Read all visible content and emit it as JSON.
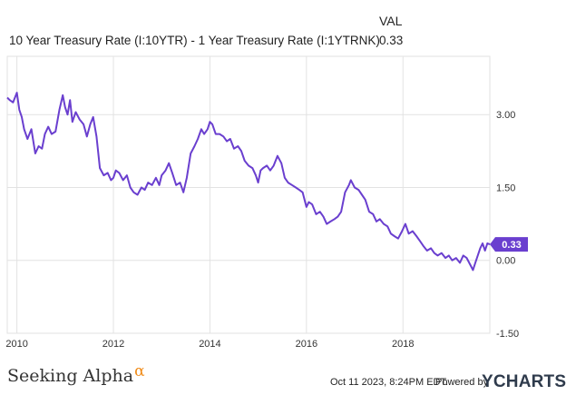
{
  "legend": {
    "header": "VAL",
    "series_name": "10 Year Treasury Rate (I:10YTR) - 1 Year Treasury Rate (I:1YTRNK)",
    "series_value": "0.33"
  },
  "colors": {
    "series": "#6a3fcf",
    "grid": "#e2e2e2",
    "axis_text": "#333333"
  },
  "chart_data": {
    "type": "line",
    "title": "",
    "xlabel": "",
    "ylabel": "",
    "x_ticks": [
      "2010",
      "2012",
      "2014",
      "2016",
      "2018"
    ],
    "y_ticks": [
      3.0,
      1.5,
      0.0,
      -1.5
    ],
    "y_tick_labels": [
      "3.00",
      "1.50",
      "0.00",
      "-1.50"
    ],
    "xlim": [
      2009.8,
      2019.8
    ],
    "ylim": [
      -1.5,
      4.2
    ],
    "grid": true,
    "last_value_label": "0.33",
    "series": [
      {
        "name": "10 Year Treasury Rate (I:10YTR) - 1 Year Treasury Rate (I:1YTRNK)",
        "x": [
          2009.8,
          2009.85,
          2009.92,
          2010.0,
          2010.05,
          2010.1,
          2010.15,
          2010.22,
          2010.3,
          2010.38,
          2010.45,
          2010.52,
          2010.58,
          2010.65,
          2010.72,
          2010.8,
          2010.88,
          2010.95,
          2011.0,
          2011.05,
          2011.1,
          2011.15,
          2011.22,
          2011.3,
          2011.38,
          2011.45,
          2011.52,
          2011.58,
          2011.65,
          2011.72,
          2011.8,
          2011.88,
          2011.95,
          2012.0,
          2012.05,
          2012.12,
          2012.2,
          2012.28,
          2012.35,
          2012.42,
          2012.5,
          2012.58,
          2012.65,
          2012.72,
          2012.8,
          2012.88,
          2012.95,
          2013.0,
          2013.08,
          2013.15,
          2013.22,
          2013.3,
          2013.38,
          2013.45,
          2013.52,
          2013.6,
          2013.68,
          2013.75,
          2013.82,
          2013.88,
          2013.95,
          2014.0,
          2014.05,
          2014.12,
          2014.2,
          2014.28,
          2014.35,
          2014.42,
          2014.5,
          2014.58,
          2014.65,
          2014.72,
          2014.8,
          2014.88,
          2014.95,
          2015.0,
          2015.05,
          2015.1,
          2015.18,
          2015.25,
          2015.32,
          2015.4,
          2015.48,
          2015.55,
          2015.62,
          2015.7,
          2015.78,
          2015.85,
          2015.92,
          2016.0,
          2016.05,
          2016.12,
          2016.2,
          2016.28,
          2016.35,
          2016.42,
          2016.5,
          2016.58,
          2016.65,
          2016.72,
          2016.8,
          2016.88,
          2016.92,
          2017.0,
          2017.08,
          2017.15,
          2017.22,
          2017.3,
          2017.38,
          2017.45,
          2017.52,
          2017.6,
          2017.68,
          2017.75,
          2017.82,
          2017.9,
          2017.98,
          2018.05,
          2018.12,
          2018.2,
          2018.28,
          2018.35,
          2018.42,
          2018.5,
          2018.58,
          2018.65,
          2018.72,
          2018.8,
          2018.88,
          2018.95,
          2019.02,
          2019.1,
          2019.18,
          2019.25,
          2019.32,
          2019.4,
          2019.45,
          2019.5,
          2019.55,
          2019.6,
          2019.65,
          2019.7,
          2019.75,
          2019.8
        ],
        "values": [
          3.35,
          3.3,
          3.25,
          3.45,
          3.1,
          2.95,
          2.7,
          2.5,
          2.7,
          2.2,
          2.35,
          2.3,
          2.6,
          2.75,
          2.6,
          2.65,
          3.1,
          3.4,
          3.15,
          3.0,
          3.3,
          2.85,
          3.05,
          2.9,
          2.8,
          2.55,
          2.8,
          2.95,
          2.55,
          1.9,
          1.75,
          1.8,
          1.65,
          1.7,
          1.85,
          1.8,
          1.65,
          1.75,
          1.5,
          1.4,
          1.35,
          1.5,
          1.45,
          1.6,
          1.55,
          1.7,
          1.55,
          1.75,
          1.85,
          2.0,
          1.8,
          1.55,
          1.6,
          1.4,
          1.7,
          2.2,
          2.35,
          2.5,
          2.7,
          2.6,
          2.7,
          2.85,
          2.8,
          2.6,
          2.6,
          2.55,
          2.45,
          2.5,
          2.3,
          2.35,
          2.25,
          2.05,
          1.95,
          1.9,
          1.75,
          1.6,
          1.85,
          1.9,
          1.95,
          1.85,
          1.95,
          2.15,
          2.0,
          1.7,
          1.6,
          1.55,
          1.5,
          1.45,
          1.4,
          1.1,
          1.2,
          1.15,
          0.95,
          1.0,
          0.9,
          0.75,
          0.8,
          0.85,
          0.9,
          1.0,
          1.4,
          1.55,
          1.65,
          1.5,
          1.45,
          1.35,
          1.25,
          1.0,
          0.95,
          0.8,
          0.85,
          0.75,
          0.7,
          0.55,
          0.5,
          0.45,
          0.6,
          0.75,
          0.55,
          0.6,
          0.5,
          0.4,
          0.3,
          0.2,
          0.25,
          0.15,
          0.1,
          0.15,
          0.05,
          0.1,
          0.0,
          0.05,
          -0.05,
          0.1,
          0.05,
          -0.1,
          -0.2,
          -0.05,
          0.1,
          0.25,
          0.35,
          0.2,
          0.35,
          0.33
        ]
      }
    ]
  },
  "footer": {
    "brand": "Seeking Alpha",
    "brand_symbol": "α",
    "date": "Oct 11 2023, 8:24PM EDT.",
    "powered": "Powered by",
    "logo": "YCHARTS"
  }
}
